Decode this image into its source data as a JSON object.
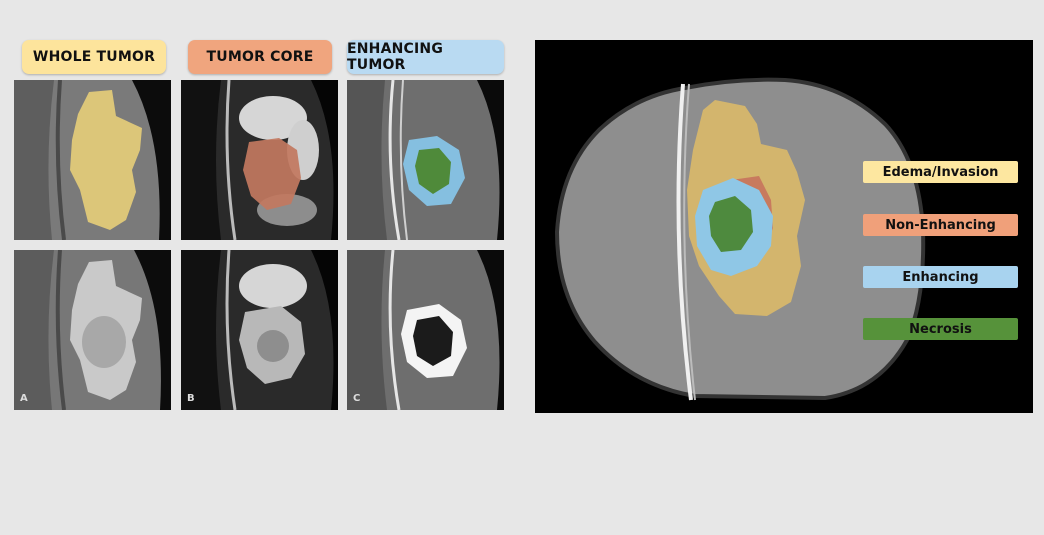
{
  "headers": {
    "whole_tumor": "WHOLE TUMOR",
    "tumor_core": "TUMOR CORE",
    "enhancing_tumor": "ENHANCING TUMOR"
  },
  "panel_letters": {
    "a": "A",
    "b": "B",
    "c": "C"
  },
  "legend": [
    {
      "label": "Edema/Invasion",
      "color": "#fde7a0"
    },
    {
      "label": "Non-Enhancing",
      "color": "#f0a07a"
    },
    {
      "label": "Enhancing",
      "color": "#a8d3ef"
    },
    {
      "label": "Necrosis",
      "color": "#56923a"
    }
  ],
  "colors": {
    "background": "#e7e7e7",
    "whole_tumor_header": "#fde49c",
    "tumor_core_header": "#f0a57e",
    "enhancing_tumor_header": "#b9daf2"
  }
}
